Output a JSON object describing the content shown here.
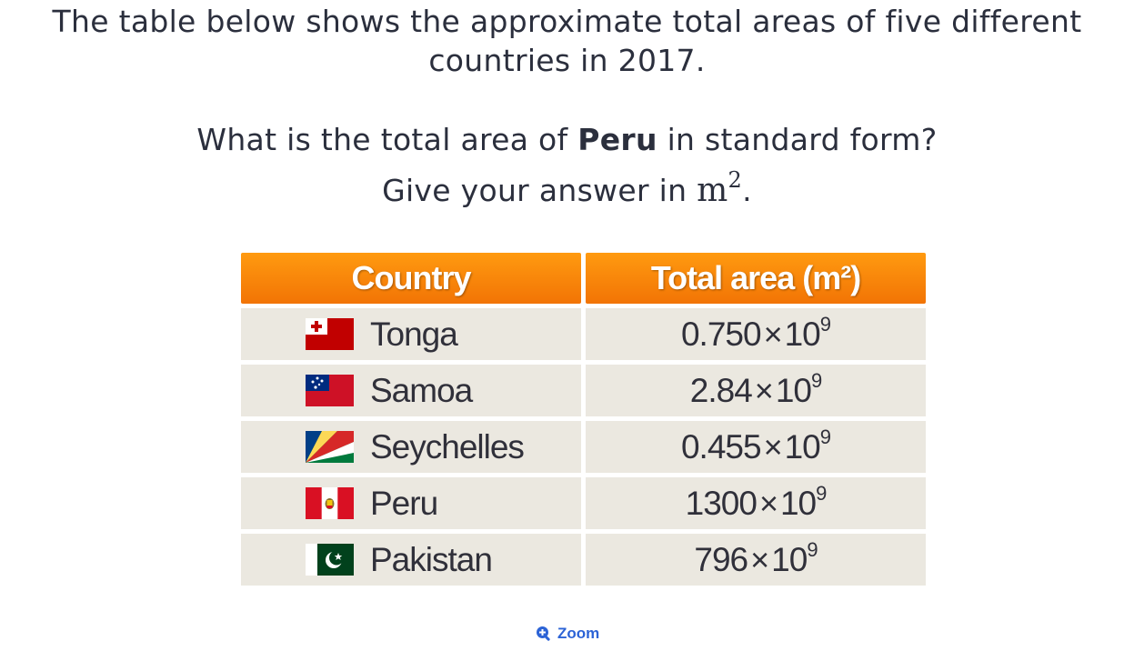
{
  "intro": {
    "line1": "The table below shows the approximate total areas of five different",
    "line2": "countries in 2017."
  },
  "question": {
    "prefix": "What is the total area of ",
    "country": "Peru",
    "suffix": " in standard form?",
    "line2_prefix": "Give your answer in ",
    "unit_base": "m",
    "unit_exp": "2",
    "line2_suffix": "."
  },
  "table": {
    "header_color": "#f7830a",
    "row_color": "#ebe8e0",
    "headers": [
      "Country",
      "Total area (m²)"
    ],
    "rows": [
      {
        "country": "Tonga",
        "flag": "tonga-flag-icon",
        "mantissa": "0.750",
        "times": "×",
        "base": "10",
        "exponent": "9"
      },
      {
        "country": "Samoa",
        "flag": "samoa-flag-icon",
        "mantissa": "2.84",
        "times": "×",
        "base": "10",
        "exponent": "9"
      },
      {
        "country": "Seychelles",
        "flag": "seychelles-flag-icon",
        "mantissa": "0.455",
        "times": "×",
        "base": "10",
        "exponent": "9"
      },
      {
        "country": "Peru",
        "flag": "peru-flag-icon",
        "mantissa": "1300",
        "times": "×",
        "base": "10",
        "exponent": "9"
      },
      {
        "country": "Pakistan",
        "flag": "pakistan-flag-icon",
        "mantissa": "796",
        "times": "×",
        "base": "10",
        "exponent": "9"
      }
    ]
  },
  "zoom": {
    "label": "Zoom",
    "icon": "zoom-in-icon",
    "color": "#2c63d6"
  }
}
